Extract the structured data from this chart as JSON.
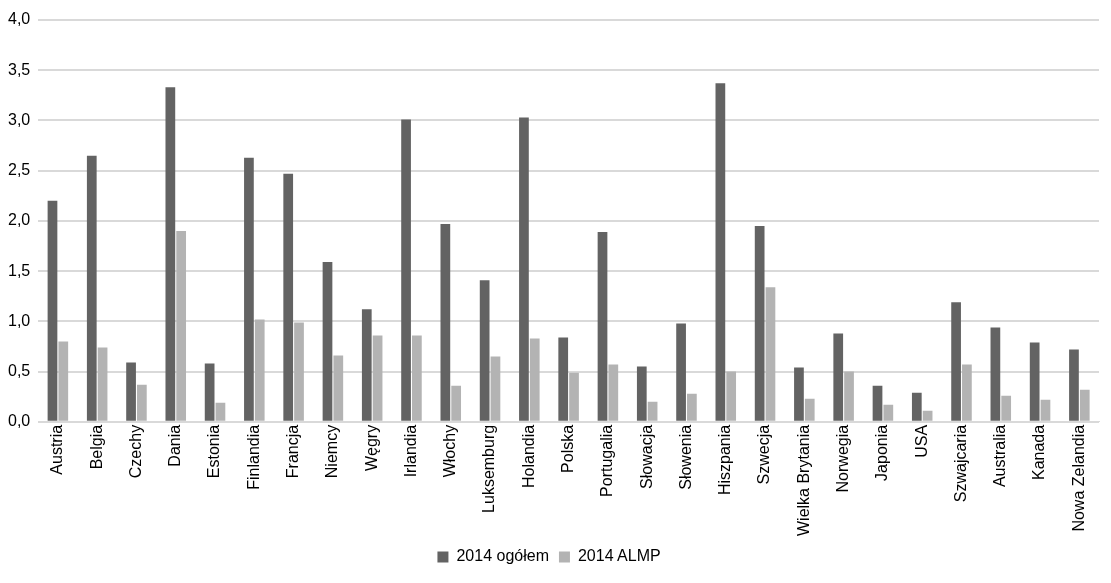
{
  "chart_data": {
    "type": "bar",
    "categories": [
      "Austria",
      "Belgia",
      "Czechy",
      "Dania",
      "Estonia",
      "Finlandia",
      "Francja",
      "Niemcy",
      "Węgry",
      "Irlandia",
      "Włochy",
      "Luksemburg",
      "Holandia",
      "Polska",
      "Portugalia",
      "Słowacja",
      "Słowenia",
      "Hiszpania",
      "Szwecja",
      "Wielka Brytania",
      "Norwegia",
      "Japonia",
      "USA",
      "Szwajcaria",
      "Australia",
      "Kanada",
      "Nowa Zelandia"
    ],
    "series": [
      {
        "name": "2014 ogółem",
        "color": "#636363",
        "values": [
          2.2,
          2.65,
          0.59,
          3.33,
          0.58,
          2.63,
          2.47,
          1.59,
          1.12,
          3.01,
          1.97,
          1.41,
          3.03,
          0.84,
          1.89,
          0.55,
          0.98,
          3.37,
          1.95,
          0.54,
          0.88,
          0.36,
          0.29,
          1.19,
          0.94,
          0.79,
          0.72
        ]
      },
      {
        "name": "2014 ALMP",
        "color": "#b3b3b3",
        "values": [
          0.8,
          0.74,
          0.37,
          1.9,
          0.19,
          1.02,
          0.99,
          0.66,
          0.86,
          0.86,
          0.36,
          0.65,
          0.83,
          0.49,
          0.57,
          0.2,
          0.28,
          0.5,
          1.34,
          0.23,
          0.5,
          0.17,
          0.11,
          0.57,
          0.26,
          0.22,
          0.32
        ]
      }
    ],
    "ylim": [
      0,
      4
    ],
    "yticks": [
      {
        "value": 0,
        "label": "0,0"
      },
      {
        "value": 0.5,
        "label": "0,5"
      },
      {
        "value": 1,
        "label": "1,0"
      },
      {
        "value": 1.5,
        "label": "1,5"
      },
      {
        "value": 2,
        "label": "2,0"
      },
      {
        "value": 2.5,
        "label": "2,5"
      },
      {
        "value": 3,
        "label": "3,0"
      },
      {
        "value": 3.5,
        "label": "3,5"
      },
      {
        "value": 4,
        "label": "4,0"
      }
    ],
    "grid": "y",
    "legend": "bottom"
  }
}
